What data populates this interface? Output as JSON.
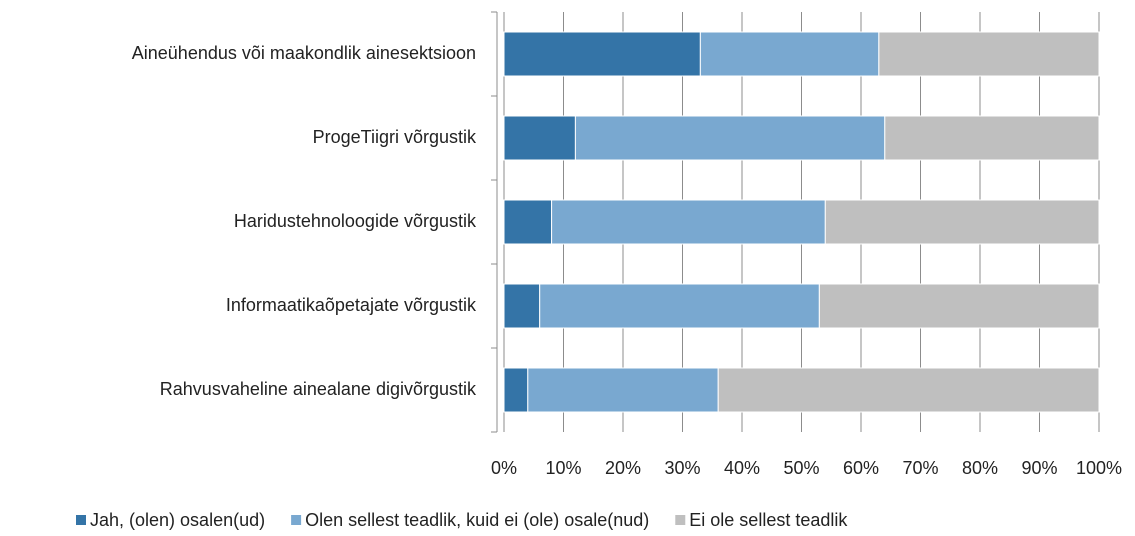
{
  "chart_data": {
    "type": "stacked-bar-horizontal",
    "categories": [
      "Aineühendus või maakondlik ainesektsioon",
      "ProgeTiigri võrgustik",
      "Haridustehnoloogide võrgustik",
      "Informaatikaõpetajate võrgustik",
      "Rahvusvaheline ainealane digivõrgustik"
    ],
    "series": [
      {
        "name": "Jah, (olen) osalen(ud)",
        "color": "#3474a7",
        "values": [
          33,
          12,
          8,
          6,
          4
        ]
      },
      {
        "name": "Olen sellest teadlik, kuid ei (ole) osale(nud)",
        "color": "#79a8d0",
        "values": [
          30,
          52,
          46,
          47,
          32
        ]
      },
      {
        "name": "Ei ole sellest teadlik",
        "color": "#bfbfbf",
        "values": [
          37,
          36,
          46,
          47,
          64
        ]
      }
    ],
    "xlim": [
      0,
      100
    ],
    "xticks": [
      {
        "value": 0,
        "label": "0%"
      },
      {
        "value": 10,
        "label": "10%"
      },
      {
        "value": 20,
        "label": "20%"
      },
      {
        "value": 30,
        "label": "30%"
      },
      {
        "value": 40,
        "label": "40%"
      },
      {
        "value": 50,
        "label": "50%"
      },
      {
        "value": 60,
        "label": "60%"
      },
      {
        "value": 70,
        "label": "70%"
      },
      {
        "value": 80,
        "label": "80%"
      },
      {
        "value": 90,
        "label": "90%"
      },
      {
        "value": 100,
        "label": "100%"
      }
    ],
    "grid": true,
    "legend": "bottom"
  }
}
